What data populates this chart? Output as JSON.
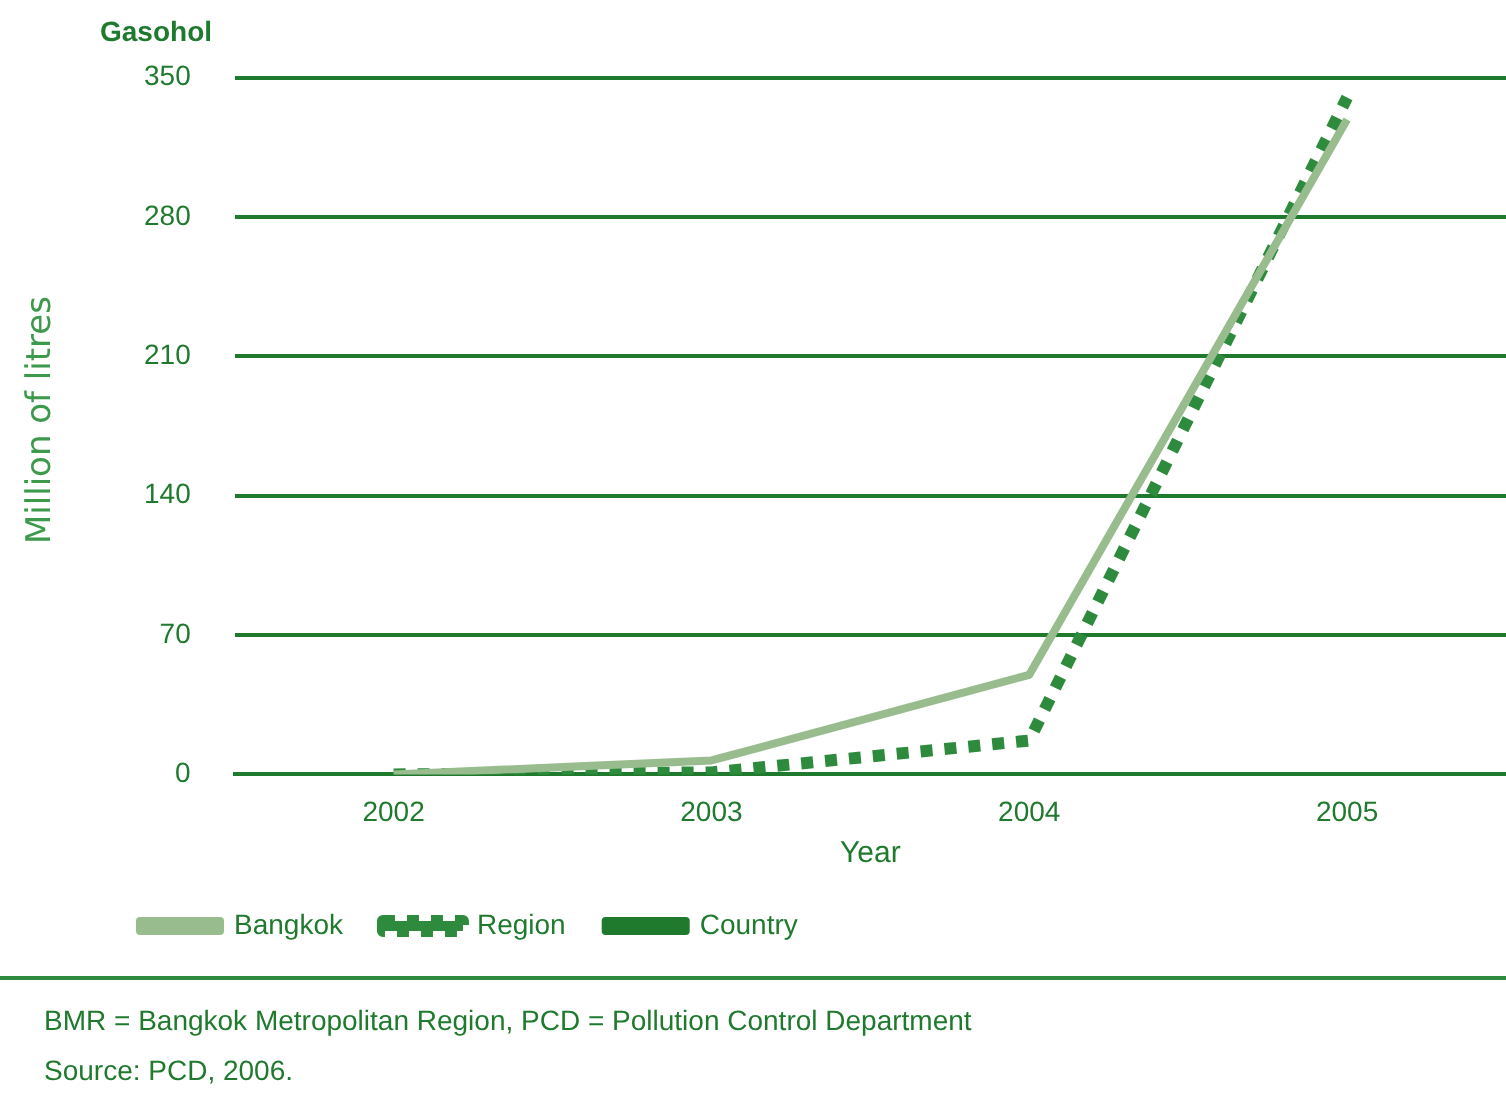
{
  "chart_data": {
    "type": "line",
    "title": "Gasohol",
    "xlabel": "Year",
    "ylabel": "Million of litres",
    "categories": [
      "2002",
      "2003",
      "2004",
      "2005"
    ],
    "series": [
      {
        "name": "Bangkok",
        "color": "#98bc8e",
        "values": [
          0,
          7,
          50,
          329
        ],
        "line_style": "solid"
      },
      {
        "name": "Region",
        "color": "#2e8b3e",
        "values": [
          0,
          1,
          17,
          340
        ],
        "line_style": "dotted"
      },
      {
        "name": "Country",
        "color": "#1f7a2e",
        "values": [
          null,
          null,
          null,
          null
        ],
        "line_style": "solid"
      }
    ],
    "ylim": [
      0,
      350
    ],
    "yticks": [
      0,
      70,
      140,
      210,
      280,
      350
    ],
    "grid": "y",
    "legend": "bottom left",
    "marker": "none",
    "annotations": [
      "BMR = Bangkok Metropolitan Region, PCD = Pollution Control Department",
      "Source: PCD, 2006."
    ]
  }
}
